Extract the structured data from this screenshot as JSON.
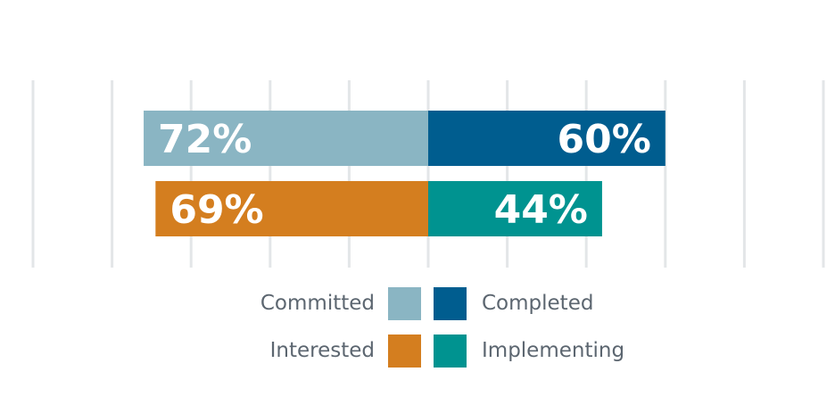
{
  "chart_data": {
    "type": "bar",
    "orientation": "horizontal-diverging",
    "grid": true,
    "legend_position": "bottom",
    "rows": [
      {
        "left": {
          "name": "Committed",
          "value": 72,
          "label": "72%",
          "color": "#8ab5c3"
        },
        "right": {
          "name": "Completed",
          "value": 60,
          "label": "60%",
          "color": "#005d8f"
        }
      },
      {
        "left": {
          "name": "Interested",
          "value": 69,
          "label": "69%",
          "color": "#d47e1f"
        },
        "right": {
          "name": "Implementing",
          "value": 44,
          "label": "44%",
          "color": "#009390"
        }
      }
    ]
  },
  "legend": {
    "committed": {
      "label": "Committed",
      "color": "#8ab5c3"
    },
    "completed": {
      "label": "Completed",
      "color": "#005d8f"
    },
    "interested": {
      "label": "Interested",
      "color": "#d47e1f"
    },
    "implementing": {
      "label": "Implementing",
      "color": "#009390"
    }
  }
}
